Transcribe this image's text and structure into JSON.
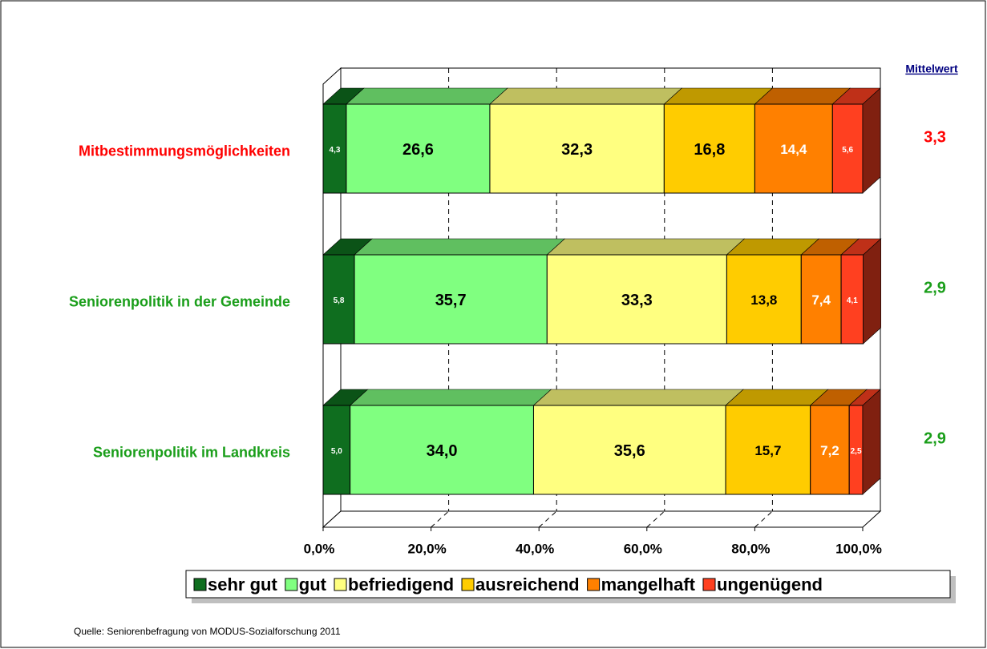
{
  "chart_data": {
    "type": "bar3d_stacked_horizontal",
    "categories": [
      "Mitbestimmungsmöglichkeiten",
      "Seniorenpolitik in der Gemeinde",
      "Seniorenpolitik im Landkreis"
    ],
    "category_colors": [
      "#ff0000",
      "#1a9e1a",
      "#1a9e1a"
    ],
    "series": [
      {
        "name": "sehr gut",
        "color": "#0f6e1f",
        "values": [
          4.3,
          5.8,
          5.0
        ],
        "value_labels": [
          "4,3",
          "5,8",
          "5,0"
        ]
      },
      {
        "name": "gut",
        "color": "#80ff80",
        "values": [
          26.6,
          35.7,
          34.0
        ],
        "value_labels": [
          "26,6",
          "35,7",
          "34,0"
        ]
      },
      {
        "name": "befriedigend",
        "color": "#ffff80",
        "values": [
          32.3,
          33.3,
          35.6
        ],
        "value_labels": [
          "32,3",
          "33,3",
          "35,6"
        ]
      },
      {
        "name": "ausreichend",
        "color": "#ffcc00",
        "values": [
          16.8,
          13.8,
          15.7
        ],
        "value_labels": [
          "16,8",
          "13,8",
          "15,7"
        ]
      },
      {
        "name": "mangelhaft",
        "color": "#ff8000",
        "values": [
          14.4,
          7.4,
          7.2
        ],
        "value_labels": [
          "14,4",
          "7,4",
          "7,2"
        ]
      },
      {
        "name": "ungenügend",
        "color": "#ff4020",
        "values": [
          5.6,
          4.1,
          2.5
        ],
        "value_labels": [
          "5,6",
          "4,1",
          "2,5"
        ]
      }
    ],
    "xlim": [
      0,
      100
    ],
    "xticks": [
      {
        "value": 0,
        "label": "0,0%"
      },
      {
        "value": 20,
        "label": "20,0%"
      },
      {
        "value": 40,
        "label": "40,0%"
      },
      {
        "value": 60,
        "label": "60,0%"
      },
      {
        "value": 80,
        "label": "80,0%"
      },
      {
        "value": 100,
        "label": "100,0%"
      }
    ],
    "grid": true,
    "legend": "bottom",
    "mean_title": "Mittelwert",
    "mean_values": [
      3.3,
      2.9,
      2.9
    ],
    "mean_labels": [
      "3,3",
      "2,9",
      "2,9"
    ],
    "source": "Quelle: Seniorenbefragung von MODUS-Sozialforschung 2011"
  }
}
